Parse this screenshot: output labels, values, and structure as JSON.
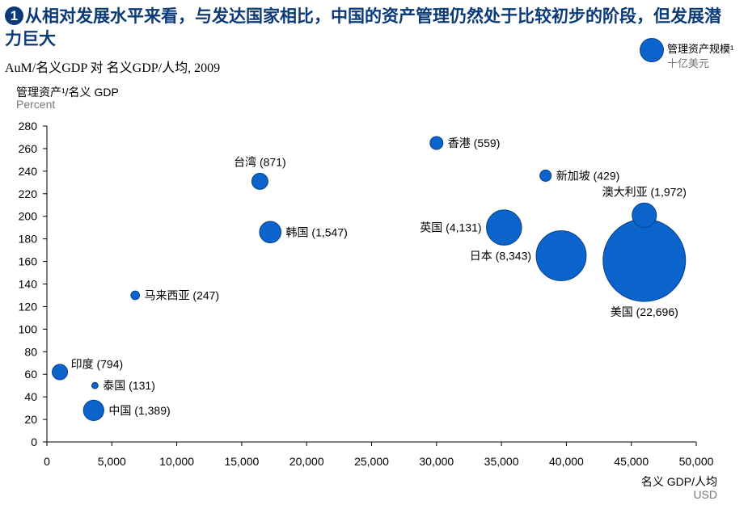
{
  "header": {
    "badge": "1",
    "title": "从相对发展水平来看，与发达国家相比，中国的资产管理仍然处于比较初步的阶段，但发展潜力巨大",
    "subtitle": "AuM/名义GDP 对 名义GDP/人均, 2009"
  },
  "legend": {
    "label": "管理资产规模¹",
    "unit": "十亿美元"
  },
  "colors": {
    "bubble_fill": "#0a64cc",
    "bubble_stroke": "#08408a",
    "title": "#0a3a78"
  },
  "chart_data": {
    "type": "scatter",
    "title": "",
    "ylabel": "管理资产¹/名义 GDP",
    "ylabel_unit": "Percent",
    "xlabel": "名义 GDP/人均",
    "xlabel_unit": "USD",
    "xlim": [
      0,
      50000
    ],
    "ylim": [
      0,
      280
    ],
    "xticks": [
      0,
      5000,
      10000,
      15000,
      20000,
      25000,
      30000,
      35000,
      40000,
      45000,
      50000
    ],
    "xtick_labels": [
      "0",
      "5,000",
      "10,000",
      "15,000",
      "20,000",
      "25,000",
      "30,000",
      "35,000",
      "40,000",
      "45,000",
      "50,000"
    ],
    "yticks": [
      0,
      20,
      40,
      60,
      80,
      100,
      120,
      140,
      160,
      180,
      200,
      220,
      240,
      260,
      280
    ],
    "ytick_labels": [
      "0",
      "20",
      "40",
      "60",
      "80",
      "100",
      "120",
      "140",
      "160",
      "180",
      "200",
      "220",
      "240",
      "260",
      "280"
    ],
    "grid": false,
    "legend_position": "top-right",
    "size_variable": "管理资产规模 (十亿美元)",
    "points": [
      {
        "name": "印度",
        "x": 1000,
        "y": 62,
        "size": 794,
        "label": "印度 (794)",
        "label_side": "right-up"
      },
      {
        "name": "泰国",
        "x": 3700,
        "y": 50,
        "size": 131,
        "label": "泰国 (131)",
        "label_side": "right"
      },
      {
        "name": "中国",
        "x": 3600,
        "y": 28,
        "size": 1389,
        "label": "中国 (1,389)",
        "label_side": "right"
      },
      {
        "name": "马来西亚",
        "x": 6800,
        "y": 130,
        "size": 247,
        "label": "马来西亚 (247)",
        "label_side": "right"
      },
      {
        "name": "台湾",
        "x": 16400,
        "y": 231,
        "size": 871,
        "label": "台湾 (871)",
        "label_side": "above"
      },
      {
        "name": "韩国",
        "x": 17200,
        "y": 186,
        "size": 1547,
        "label": "韩国 (1,547)",
        "label_side": "right"
      },
      {
        "name": "香港",
        "x": 30000,
        "y": 265,
        "size": 559,
        "label": "香港 (559)",
        "label_side": "right"
      },
      {
        "name": "新加坡",
        "x": 38400,
        "y": 236,
        "size": 429,
        "label": "新加坡 (429)",
        "label_side": "right"
      },
      {
        "name": "澳大利亚",
        "x": 46000,
        "y": 201,
        "size": 1972,
        "label": "澳大利亚 (1,972)",
        "label_side": "above"
      },
      {
        "name": "英国",
        "x": 35200,
        "y": 190,
        "size": 4131,
        "label": "英国 (4,131)",
        "label_side": "left"
      },
      {
        "name": "日本",
        "x": 39600,
        "y": 165,
        "size": 8343,
        "label": "日本 (8,343)",
        "label_side": "left"
      },
      {
        "name": "美国",
        "x": 46000,
        "y": 161,
        "size": 22696,
        "label": "美国 (22,696)",
        "label_side": "below"
      }
    ]
  }
}
